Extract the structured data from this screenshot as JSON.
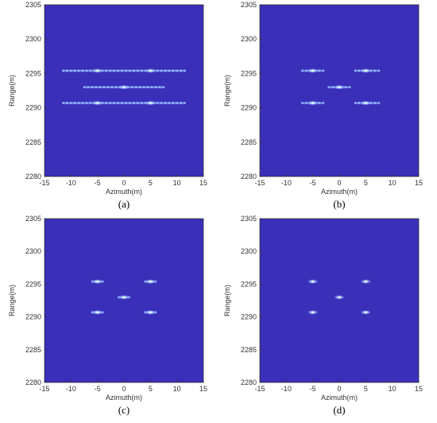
{
  "colors": {
    "background": "#3a2fb8",
    "spot": "#9fc3ff",
    "spot_core": "#e8f4ff",
    "axis": "#333333"
  },
  "chart_data": [
    {
      "type": "heatmap",
      "panel": "a",
      "caption": "(a)",
      "title": "",
      "xlabel": "Azimuth(m)",
      "ylabel": "Range(m)",
      "xlim": [
        -15,
        15
      ],
      "ylim": [
        2280,
        2305
      ],
      "xticks": [
        -15,
        -10,
        -5,
        0,
        5,
        10,
        15
      ],
      "yticks": [
        2280,
        2285,
        2290,
        2295,
        2300,
        2305
      ],
      "grid": false,
      "streaks": [
        {
          "range": 2295.4,
          "azimuth_from": -11.5,
          "azimuth_to": 11.5
        },
        {
          "range": 2293.0,
          "azimuth_from": -7.5,
          "azimuth_to": 7.5
        },
        {
          "range": 2290.7,
          "azimuth_from": -11.5,
          "azimuth_to": 11.5
        }
      ],
      "targets": [
        {
          "azimuth": -5,
          "range": 2295.4
        },
        {
          "azimuth": 5,
          "range": 2295.4
        },
        {
          "azimuth": 0,
          "range": 2293.0
        },
        {
          "azimuth": -5,
          "range": 2290.7
        },
        {
          "azimuth": 5,
          "range": 2290.7
        }
      ]
    },
    {
      "type": "heatmap",
      "panel": "b",
      "caption": "(b)",
      "title": "",
      "xlabel": "Azimuth(m)",
      "ylabel": "Range(m)",
      "xlim": [
        -15,
        15
      ],
      "ylim": [
        2280,
        2305
      ],
      "xticks": [
        -15,
        -10,
        -5,
        0,
        5,
        10,
        15
      ],
      "yticks": [
        2280,
        2285,
        2290,
        2295,
        2300,
        2305
      ],
      "grid": false,
      "streaks": [
        {
          "range": 2295.4,
          "azimuth_from": -7,
          "azimuth_to": -3
        },
        {
          "range": 2295.4,
          "azimuth_from": 3,
          "azimuth_to": 7.5
        },
        {
          "range": 2293.0,
          "azimuth_from": -2,
          "azimuth_to": 2
        },
        {
          "range": 2290.7,
          "azimuth_from": -7,
          "azimuth_to": -3
        },
        {
          "range": 2290.7,
          "azimuth_from": 3,
          "azimuth_to": 7.5
        }
      ],
      "targets": [
        {
          "azimuth": -5,
          "range": 2295.4
        },
        {
          "azimuth": 5,
          "range": 2295.4
        },
        {
          "azimuth": 0,
          "range": 2293.0
        },
        {
          "azimuth": -5,
          "range": 2290.7
        },
        {
          "azimuth": 5,
          "range": 2290.7
        }
      ]
    },
    {
      "type": "heatmap",
      "panel": "c",
      "caption": "(c)",
      "title": "",
      "xlabel": "Azimuth(m)",
      "ylabel": "Range(m)",
      "xlim": [
        -15,
        15
      ],
      "ylim": [
        2280,
        2305
      ],
      "xticks": [
        -15,
        -10,
        -5,
        0,
        5,
        10,
        15
      ],
      "yticks": [
        2280,
        2285,
        2290,
        2295,
        2300,
        2305
      ],
      "grid": false,
      "streaks": [
        {
          "range": 2295.4,
          "azimuth_from": -6,
          "azimuth_to": -4
        },
        {
          "range": 2295.4,
          "azimuth_from": 4,
          "azimuth_to": 6
        },
        {
          "range": 2293.0,
          "azimuth_from": -1,
          "azimuth_to": 1
        },
        {
          "range": 2290.7,
          "azimuth_from": -6,
          "azimuth_to": -4
        },
        {
          "range": 2290.7,
          "azimuth_from": 4,
          "azimuth_to": 6
        }
      ],
      "targets": [
        {
          "azimuth": -5,
          "range": 2295.4
        },
        {
          "azimuth": 5,
          "range": 2295.4
        },
        {
          "azimuth": 0,
          "range": 2293.0
        },
        {
          "azimuth": -5,
          "range": 2290.7
        },
        {
          "azimuth": 5,
          "range": 2290.7
        }
      ]
    },
    {
      "type": "heatmap",
      "panel": "d",
      "caption": "(d)",
      "title": "",
      "xlabel": "Azimuth(m)",
      "ylabel": "Range(m)",
      "xlim": [
        -15,
        15
      ],
      "ylim": [
        2280,
        2305
      ],
      "xticks": [
        -15,
        -10,
        -5,
        0,
        5,
        10,
        15
      ],
      "yticks": [
        2280,
        2285,
        2290,
        2295,
        2300,
        2305
      ],
      "grid": false,
      "streaks": [],
      "targets": [
        {
          "azimuth": -5,
          "range": 2295.4
        },
        {
          "azimuth": 5,
          "range": 2295.4
        },
        {
          "azimuth": 0,
          "range": 2293.0
        },
        {
          "azimuth": -5,
          "range": 2290.7
        },
        {
          "azimuth": 5,
          "range": 2290.7
        }
      ]
    }
  ]
}
